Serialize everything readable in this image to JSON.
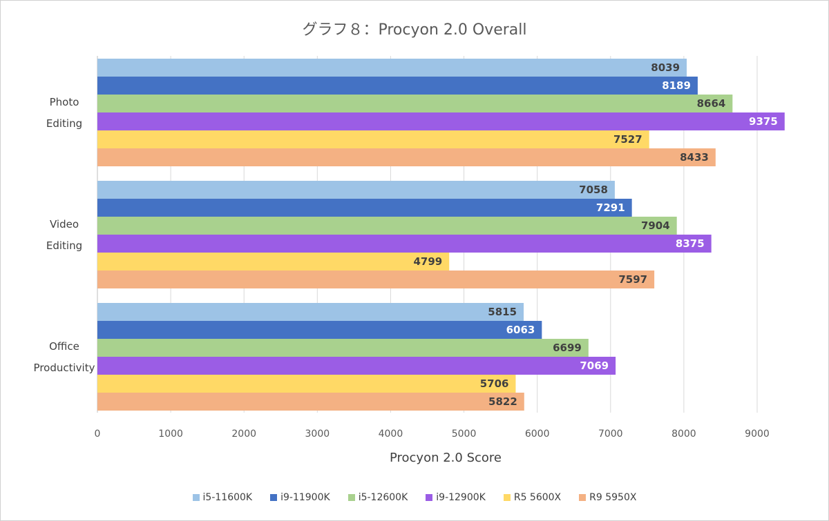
{
  "chart_data": {
    "type": "bar",
    "orientation": "horizontal",
    "title": "グラフ８：Procyon 2.0 Overall",
    "xlabel": "Procyon 2.0 Score",
    "ylabel": "",
    "xlim": [
      0,
      9000
    ],
    "xticks": [
      0,
      1000,
      2000,
      3000,
      4000,
      5000,
      6000,
      7000,
      8000,
      9000
    ],
    "grid": true,
    "legend_position": "bottom",
    "categories": [
      {
        "line1": "Photo",
        "line2": "Editing"
      },
      {
        "line1": "Video",
        "line2": "Editing"
      },
      {
        "line1": "Office",
        "line2": "Productivity"
      }
    ],
    "series": [
      {
        "name": "i5-11600K",
        "color": "#9dc3e6",
        "label_color": "#404040",
        "values": [
          8039,
          7058,
          5815
        ]
      },
      {
        "name": "i9-11900K",
        "color": "#4472c4",
        "label_color": "#ffffff",
        "values": [
          8189,
          7291,
          6063
        ]
      },
      {
        "name": "i5-12600K",
        "color": "#a9d18e",
        "label_color": "#404040",
        "values": [
          8664,
          7904,
          6699
        ]
      },
      {
        "name": "i9-12900K",
        "color": "#9b5de5",
        "label_color": "#ffffff",
        "values": [
          9375,
          8375,
          7069
        ]
      },
      {
        "name": "R5 5600X",
        "color": "#ffd966",
        "label_color": "#404040",
        "values": [
          7527,
          4799,
          5706
        ]
      },
      {
        "name": "R9 5950X",
        "color": "#f4b183",
        "label_color": "#404040",
        "values": [
          8433,
          7597,
          5822
        ]
      }
    ]
  }
}
